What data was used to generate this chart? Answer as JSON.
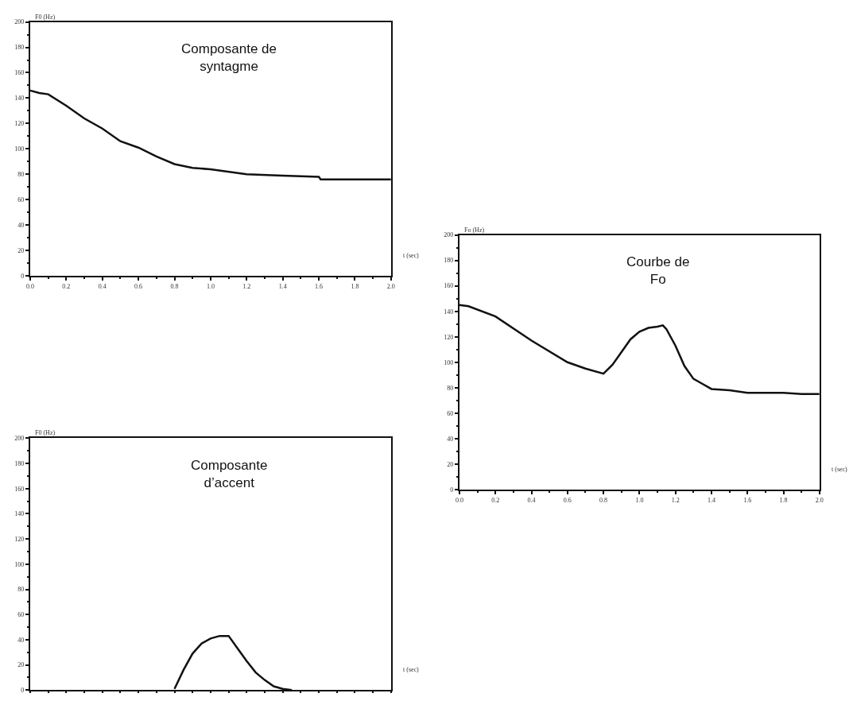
{
  "chart_data": [
    {
      "type": "line",
      "title": "Composante de\nsyntagme",
      "xlabel": "t (sec)",
      "ylabel": "F0 (Hz)",
      "xlim": [
        0,
        2.0
      ],
      "ylim": [
        0,
        200
      ],
      "xticks": [
        {
          "value": 0,
          "label": "0.0"
        },
        0.2,
        0.4,
        0.6,
        0.8,
        {
          "value": 1,
          "label": "1.0"
        },
        1.2,
        1.4,
        1.6,
        1.8,
        {
          "value": 2,
          "label": "2.0"
        }
      ],
      "yticks": [
        0,
        20,
        40,
        60,
        80,
        100,
        120,
        140,
        160,
        180,
        200
      ],
      "series": [
        {
          "color": "#111111",
          "x": [
            0,
            0.05,
            0.1,
            0.2,
            0.3,
            0.4,
            0.5,
            0.6,
            0.7,
            0.8,
            0.9,
            1.0,
            1.2,
            1.4,
            1.6,
            1.61,
            2.0
          ],
          "values": [
            146,
            144,
            143,
            134,
            124,
            116,
            106,
            101,
            94,
            88,
            85,
            84,
            80,
            79,
            78,
            76,
            76
          ]
        }
      ]
    },
    {
      "type": "line",
      "title": "Courbe de\nFo",
      "xlabel": "t (sec)",
      "ylabel": "Fo (Hz)",
      "xlim": [
        0,
        2.0
      ],
      "ylim": [
        0,
        200
      ],
      "xticks": [
        {
          "value": 0,
          "label": "0.0"
        },
        0.2,
        0.4,
        0.6,
        0.8,
        {
          "value": 1,
          "label": "1.0"
        },
        1.2,
        1.4,
        1.6,
        1.8,
        {
          "value": 2,
          "label": "2.0"
        }
      ],
      "yticks": [
        0,
        20,
        40,
        60,
        80,
        100,
        120,
        140,
        160,
        180,
        200
      ],
      "series": [
        {
          "color": "#111111",
          "x": [
            0,
            0.05,
            0.2,
            0.4,
            0.6,
            0.7,
            0.8,
            0.85,
            0.9,
            0.95,
            1.0,
            1.05,
            1.1,
            1.13,
            1.15,
            1.2,
            1.25,
            1.3,
            1.35,
            1.4,
            1.5,
            1.6,
            1.8,
            1.9,
            2.0
          ],
          "values": [
            145,
            144,
            136,
            117,
            100,
            95,
            91,
            98,
            108,
            118,
            124,
            127,
            128,
            129,
            126,
            113,
            97,
            87,
            83,
            79,
            78,
            76,
            76,
            75,
            75
          ]
        }
      ]
    },
    {
      "type": "line",
      "title": "Composante\nd’accent",
      "xlabel": "t (sec)",
      "ylabel": "F0 (Hz)",
      "xlim": [
        0,
        2.0
      ],
      "ylim": [
        0,
        200
      ],
      "xticks": [
        {
          "value": 0,
          "label": null
        },
        {
          "value": 0.2,
          "label": null
        },
        {
          "value": 0.4,
          "label": null
        },
        {
          "value": 0.6,
          "label": null
        },
        {
          "value": 0.8,
          "label": null
        },
        {
          "value": 1.0,
          "label": null
        },
        {
          "value": 1.2,
          "label": null
        },
        {
          "value": 1.4,
          "label": null
        },
        {
          "value": 1.6,
          "label": null
        },
        {
          "value": 1.8,
          "label": null
        },
        {
          "value": 2.0,
          "label": null
        }
      ],
      "yticks": [
        0,
        20,
        40,
        60,
        80,
        100,
        120,
        140,
        160,
        180,
        200
      ],
      "tick_labels": "y",
      "series": [
        {
          "color": "#111111",
          "x": [
            0.8,
            0.85,
            0.9,
            0.95,
            1.0,
            1.05,
            1.1,
            1.15,
            1.2,
            1.25,
            1.3,
            1.35,
            1.4,
            1.45
          ],
          "values": [
            1,
            16,
            29,
            37,
            41,
            43,
            43,
            33,
            23,
            14,
            8,
            3,
            1,
            0
          ]
        }
      ]
    }
  ]
}
